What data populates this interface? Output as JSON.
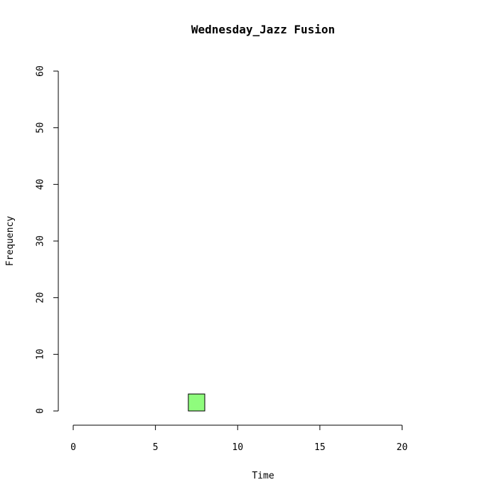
{
  "chart_data": {
    "type": "bar",
    "title": "Wednesday_Jazz Fusion",
    "xlabel": "Time",
    "ylabel": "Frequency",
    "xlim": [
      0,
      24
    ],
    "ylim": [
      0,
      60
    ],
    "x_ticks": [
      0,
      5,
      10,
      15,
      20
    ],
    "y_ticks": [
      0,
      10,
      20,
      30,
      40,
      50,
      60
    ],
    "bin_width": 1,
    "bins": [
      {
        "start": 0,
        "end": 1,
        "value": 0
      },
      {
        "start": 1,
        "end": 2,
        "value": 0
      },
      {
        "start": 2,
        "end": 3,
        "value": 0
      },
      {
        "start": 3,
        "end": 4,
        "value": 0
      },
      {
        "start": 4,
        "end": 5,
        "value": 0
      },
      {
        "start": 5,
        "end": 6,
        "value": 0
      },
      {
        "start": 6,
        "end": 7,
        "value": 0
      },
      {
        "start": 7,
        "end": 8,
        "value": 3
      },
      {
        "start": 8,
        "end": 9,
        "value": 0
      },
      {
        "start": 9,
        "end": 10,
        "value": 0
      },
      {
        "start": 10,
        "end": 11,
        "value": 0
      },
      {
        "start": 11,
        "end": 12,
        "value": 0
      },
      {
        "start": 12,
        "end": 13,
        "value": 0
      },
      {
        "start": 13,
        "end": 14,
        "value": 0
      },
      {
        "start": 14,
        "end": 15,
        "value": 0
      },
      {
        "start": 15,
        "end": 16,
        "value": 0
      },
      {
        "start": 16,
        "end": 17,
        "value": 0
      },
      {
        "start": 17,
        "end": 18,
        "value": 0
      },
      {
        "start": 18,
        "end": 19,
        "value": 0
      },
      {
        "start": 19,
        "end": 20,
        "value": 0
      },
      {
        "start": 20,
        "end": 21,
        "value": 0
      },
      {
        "start": 21,
        "end": 22,
        "value": 0
      },
      {
        "start": 22,
        "end": 23,
        "value": 0
      },
      {
        "start": 23,
        "end": 24,
        "value": 0
      }
    ],
    "bar_color": "#8ffc7d",
    "bar_border_color": "#000000",
    "grid": false,
    "legend": "none"
  }
}
